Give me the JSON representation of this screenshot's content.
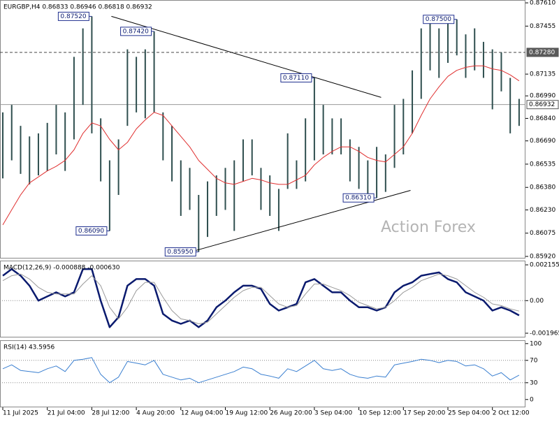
{
  "chart_data": [
    {
      "type": "ohlc",
      "header": "EURGBP,H4  0.86833 0.86946 0.86818 0.86932",
      "watermark": "Action Forex",
      "bar_color": "#2f4f4f",
      "high": [
        0.8688,
        0.8693,
        0.8679,
        0.8672,
        0.8674,
        0.8681,
        0.8693,
        0.8688,
        0.8725,
        0.8744,
        0.8752,
        0.8684,
        0.8656,
        0.867,
        0.873,
        0.8725,
        0.873,
        0.8742,
        0.8688,
        0.8679,
        0.8656,
        0.8651,
        0.8633,
        0.8642,
        0.8646,
        0.8651,
        0.8656,
        0.867,
        0.867,
        0.8651,
        0.8646,
        0.8637,
        0.8674,
        0.8656,
        0.8684,
        0.8711,
        0.8693,
        0.8684,
        0.8684,
        0.867,
        0.8665,
        0.8656,
        0.8665,
        0.866,
        0.8693,
        0.8697,
        0.8716,
        0.8744,
        0.8749,
        0.8744,
        0.8749,
        0.875,
        0.874,
        0.8744,
        0.8735,
        0.873,
        0.8728,
        0.8711,
        0.8697
      ],
      "low": [
        0.8644,
        0.8656,
        0.8647,
        0.864,
        0.8646,
        0.8649,
        0.866,
        0.8649,
        0.867,
        0.8693,
        0.8674,
        0.8642,
        0.8609,
        0.8633,
        0.8679,
        0.8688,
        0.8684,
        0.8688,
        0.8656,
        0.8642,
        0.8619,
        0.8623,
        0.8595,
        0.8605,
        0.8619,
        0.8623,
        0.8609,
        0.8642,
        0.8646,
        0.8623,
        0.8619,
        0.8609,
        0.8637,
        0.8637,
        0.8642,
        0.8656,
        0.866,
        0.866,
        0.866,
        0.8642,
        0.8637,
        0.8633,
        0.8631,
        0.8635,
        0.8651,
        0.866,
        0.8674,
        0.8697,
        0.8716,
        0.8711,
        0.8721,
        0.8726,
        0.8711,
        0.8716,
        0.8711,
        0.869,
        0.8702,
        0.8674,
        0.8679
      ],
      "lines": [
        {
          "color": "#e03030",
          "width": 1,
          "values": [
            0.8613,
            0.8623,
            0.8633,
            0.8641,
            0.8645,
            0.8649,
            0.8652,
            0.8656,
            0.8663,
            0.8674,
            0.8681,
            0.8679,
            0.867,
            0.8663,
            0.8668,
            0.8677,
            0.8683,
            0.8688,
            0.8686,
            0.8679,
            0.8672,
            0.8665,
            0.8656,
            0.865,
            0.8644,
            0.8641,
            0.864,
            0.8642,
            0.8644,
            0.8643,
            0.8641,
            0.864,
            0.864,
            0.8643,
            0.8646,
            0.8653,
            0.8658,
            0.8662,
            0.8665,
            0.8665,
            0.8662,
            0.8658,
            0.8656,
            0.8655,
            0.866,
            0.8665,
            0.8674,
            0.8686,
            0.8697,
            0.8705,
            0.8712,
            0.8716,
            0.8718,
            0.8719,
            0.8719,
            0.8717,
            0.8716,
            0.8713,
            0.8709
          ]
        }
      ],
      "ylim": [
        0.85906,
        0.87629
      ],
      "yticks": [
        {
          "value": 0.8761,
          "label": "0.87610"
        },
        0.87455,
        0.87135,
        {
          "value": 0.8699,
          "label": "0.86990"
        },
        {
          "value": 0.8684,
          "label": "0.86840"
        },
        {
          "value": 0.8669,
          "label": "0.86690"
        },
        0.86535,
        {
          "value": 0.8638,
          "label": "0.86380"
        },
        {
          "value": 0.8623,
          "label": "0.86230"
        },
        0.86075,
        {
          "value": 0.8592,
          "label": "0.85920"
        }
      ],
      "hlines": [
        {
          "value": 0.8728,
          "label": "0.87280",
          "style": "dashed"
        },
        {
          "value": 0.86932,
          "style": "solid"
        }
      ],
      "annotations": [
        {
          "value": 0.8752,
          "label": "0.87520",
          "x": 10
        },
        {
          "value": 0.8742,
          "label": "0.87420",
          "x": 17
        },
        {
          "value": 0.8711,
          "label": "0.87110",
          "x": 35
        },
        {
          "value": 0.8631,
          "label": "0.86310",
          "x": 42
        },
        {
          "value": 0.875,
          "label": "0.87500",
          "x": 51
        },
        {
          "value": 0.8609,
          "label": "0.86090",
          "x": 12
        },
        {
          "value": 0.8595,
          "label": "0.85950",
          "x": 22
        }
      ],
      "trendlines": [
        {
          "x": [
            12.2,
            42.5
          ],
          "y": [
            0.8752,
            0.8698
          ]
        },
        {
          "x": [
            20.5,
            45.8
          ],
          "y": [
            0.8594,
            0.8636
          ]
        }
      ]
    },
    {
      "type": "line",
      "header": "MACD(12,26,9) -0.000888 -0.000630",
      "lines": [
        {
          "color": "#0a1a6e",
          "width": 2.5,
          "values": [
            0.0015,
            0.0019,
            0.0015,
            0.0009,
            0.0,
            0.00025,
            0.0005,
            0.00025,
            0.0005,
            0.0019,
            0.0019,
            0.0,
            -0.0016,
            -0.001,
            0.0009,
            0.0013,
            0.0013,
            0.0009,
            -0.0008,
            -0.0012,
            -0.0014,
            -0.0012,
            -0.0016,
            -0.0012,
            -0.0004,
            0.0,
            0.0005,
            0.0009,
            0.0009,
            0.0007,
            -0.0002,
            -0.0006,
            -0.0004,
            -0.0002,
            0.0011,
            0.0013,
            0.0009,
            0.0005,
            0.0005,
            0.0,
            -0.0004,
            -0.0004,
            -0.0006,
            -0.0004,
            0.0005,
            0.0009,
            0.0011,
            0.0015,
            0.0016,
            0.0017,
            0.0013,
            0.0011,
            0.0005,
            0.00025,
            0.0,
            -0.0006,
            -0.0004,
            -0.0006,
            -0.00089
          ]
        },
        {
          "color": "#9a9a9a",
          "width": 1,
          "values": [
            0.0012,
            0.0015,
            0.0016,
            0.0013,
            0.0008,
            0.0005,
            0.0004,
            0.0004,
            0.0004,
            0.001,
            0.0015,
            0.0009,
            -0.0004,
            -0.0011,
            -0.0004,
            0.0006,
            0.0011,
            0.0011,
            0.0002,
            -0.0006,
            -0.0011,
            -0.0012,
            -0.0014,
            -0.0013,
            -0.0008,
            -0.0003,
            0.0002,
            0.0006,
            0.0008,
            0.0008,
            0.0003,
            -0.0002,
            -0.0004,
            -0.0003,
            0.0004,
            0.001,
            0.001,
            0.0008,
            0.0006,
            0.0003,
            -0.0001,
            -0.0003,
            -0.0005,
            -0.0004,
            0.0,
            0.0005,
            0.0008,
            0.0012,
            0.0014,
            0.0016,
            0.0015,
            0.0013,
            0.0009,
            0.0005,
            0.0002,
            -0.0002,
            -0.0003,
            -0.0005,
            -0.00063
          ]
        }
      ],
      "ylim": [
        -0.00222,
        0.00241
      ],
      "yticks": [
        0.002155,
        {
          "value": 0,
          "label": "0.00"
        },
        -0.001965
      ],
      "levels": [
        0
      ]
    },
    {
      "type": "line",
      "header": "RSI(14) 43.5956",
      "lines": [
        {
          "color": "#3a7fd0",
          "width": 1,
          "values": [
            55,
            62,
            52,
            50,
            48,
            55,
            60,
            50,
            70,
            72,
            75,
            45,
            30,
            40,
            68,
            65,
            62,
            70,
            45,
            40,
            35,
            38,
            30,
            35,
            40,
            45,
            50,
            58,
            55,
            45,
            42,
            38,
            55,
            50,
            60,
            70,
            55,
            52,
            55,
            45,
            40,
            38,
            42,
            40,
            62,
            65,
            68,
            72,
            70,
            66,
            70,
            68,
            60,
            62,
            55,
            42,
            48,
            35,
            43.5956
          ]
        }
      ],
      "ylim": [
        -14,
        106
      ],
      "yticks": [
        100,
        70,
        30,
        0
      ],
      "levels": [
        70,
        30
      ],
      "xticks": [
        {
          "value": 0,
          "label": "11 Jul 2025"
        },
        {
          "value": 5,
          "label": "21 Jul 04:00"
        },
        {
          "value": 10,
          "label": "28 Jul 12:00"
        },
        {
          "value": 15,
          "label": "4 Aug 20:00"
        },
        {
          "value": 20,
          "label": "12 Aug 04:00"
        },
        {
          "value": 25,
          "label": "19 Aug 12:00"
        },
        {
          "value": 30,
          "label": "26 Aug 20:00"
        },
        {
          "value": 35,
          "label": "3 Sep 04:00"
        },
        {
          "value": 40,
          "label": "10 Sep 12:00"
        },
        {
          "value": 45,
          "label": "17 Sep 20:00"
        },
        {
          "value": 50,
          "label": "25 Sep 04:00"
        },
        {
          "value": 55,
          "label": "2 Oct 12:00"
        }
      ]
    }
  ]
}
